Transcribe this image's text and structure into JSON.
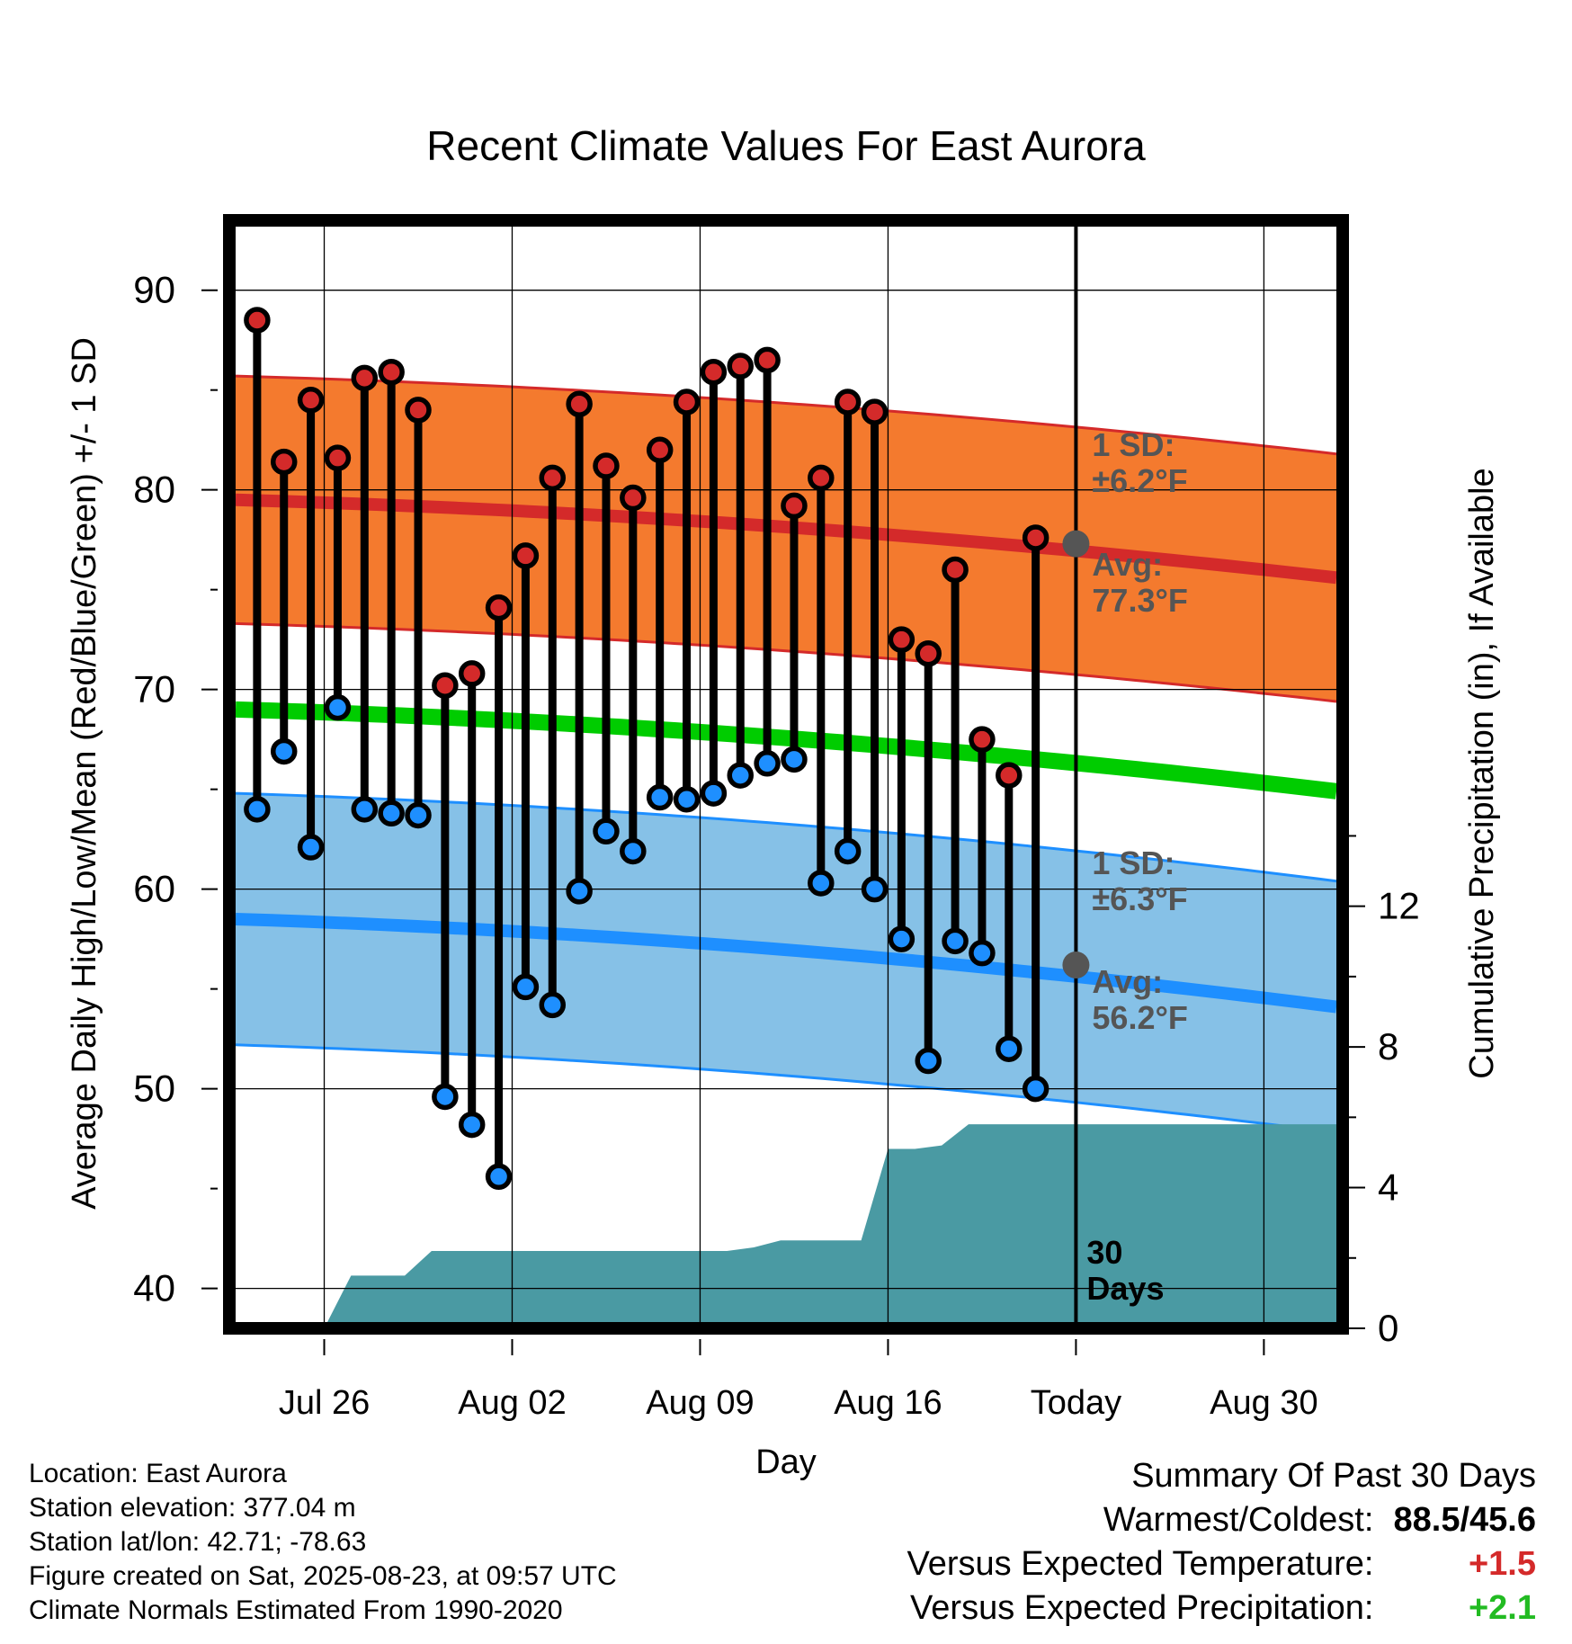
{
  "chart_data": {
    "type": "line",
    "title": "Recent Climate Values For East Aurora",
    "xlabel": "Day",
    "ylabel": "Average Daily High/Low/Mean (Red/Blue/Green) +/- 1 SD",
    "y2label": "Cumulative Precipitation (in), If Available",
    "ylim": [
      38,
      93.5
    ],
    "y2lim": [
      0,
      31.5
    ],
    "yticks": [
      40,
      50,
      60,
      70,
      80,
      90
    ],
    "y2ticks": [
      0,
      4,
      8,
      12
    ],
    "xticks": [
      {
        "label": "Jul 26",
        "day": 3
      },
      {
        "label": "Aug 02",
        "day": 10
      },
      {
        "label": "Aug 09",
        "day": 17
      },
      {
        "label": "Aug 16",
        "day": 24
      },
      {
        "label": "Today",
        "day": 31
      },
      {
        "label": "Aug 30",
        "day": 38
      }
    ],
    "xlim": [
      -0.3,
      40.7
    ],
    "today_day": 31,
    "days_label": "30 Days",
    "highs": [
      88.5,
      81.4,
      84.5,
      81.6,
      85.6,
      85.9,
      84.0,
      70.2,
      70.8,
      74.1,
      76.7,
      80.6,
      84.3,
      81.2,
      79.6,
      82.0,
      84.4,
      85.9,
      86.2,
      86.5,
      79.2,
      80.6,
      84.4,
      83.9,
      72.5,
      71.8,
      76.0,
      67.5,
      65.7,
      77.6
    ],
    "lows": [
      64.0,
      66.9,
      62.1,
      69.1,
      64.0,
      63.8,
      63.7,
      49.6,
      48.2,
      45.6,
      55.1,
      54.2,
      59.9,
      62.9,
      61.9,
      64.6,
      64.5,
      64.8,
      65.7,
      66.3,
      66.5,
      60.3,
      61.9,
      60.0,
      57.5,
      51.4,
      57.4,
      56.8,
      52.0,
      50.0
    ],
    "normal_high": {
      "start": 79.5,
      "end": 75.6
    },
    "normal_high_sd": 6.2,
    "normal_low": {
      "start": 58.5,
      "end": 54.1
    },
    "normal_low_sd": 6.3,
    "normal_mean": {
      "start": 69.0,
      "end": 64.9
    },
    "precip_days": [
      0,
      3,
      4,
      6,
      7,
      16,
      17,
      18,
      19,
      20,
      23,
      24,
      25,
      26,
      27,
      28,
      40.7
    ],
    "precip_values": [
      0,
      0,
      1.5,
      1.5,
      2.2,
      2.2,
      2.2,
      2.2,
      2.3,
      2.5,
      2.5,
      5.1,
      5.1,
      5.2,
      5.8,
      5.8,
      5.8
    ],
    "sd_high_label": [
      "1 SD:",
      "±6.2°F"
    ],
    "avg_high_label": [
      "Avg:",
      "77.3°F"
    ],
    "sd_low_label": [
      "1 SD:",
      "±6.3°F"
    ],
    "avg_low_label": [
      "Avg:",
      "56.2°F"
    ],
    "avg_high_today": 77.3,
    "avg_low_today": 56.2,
    "colors": {
      "high_band": "#f47a2e",
      "high_line": "#d42a2a",
      "low_band": "#86c1e7",
      "low_line": "#1e8fff",
      "mean_line": "#00cc00",
      "precip": "#4a9aa3",
      "high_point": "#d42a2a",
      "low_point": "#1e8fff",
      "annotation": "#555555"
    }
  },
  "footer": {
    "location": "Location: East Aurora",
    "elevation": "Station elevation: 377.04 m",
    "latlon": "Station lat/lon: 42.71; -78.63",
    "created": "Figure created on Sat, 2025-08-23, at 09:57 UTC",
    "normals": "Climate Normals Estimated From 1990-2020"
  },
  "summary": {
    "title": "Summary Of Past 30 Days",
    "warmest_label": "Warmest/Coldest:",
    "warmest_value": "88.5/45.6",
    "temp_label": "Versus Expected Temperature:",
    "temp_value": "+1.5",
    "precip_label": "Versus Expected Precipitation:",
    "precip_value": "+2.1"
  }
}
